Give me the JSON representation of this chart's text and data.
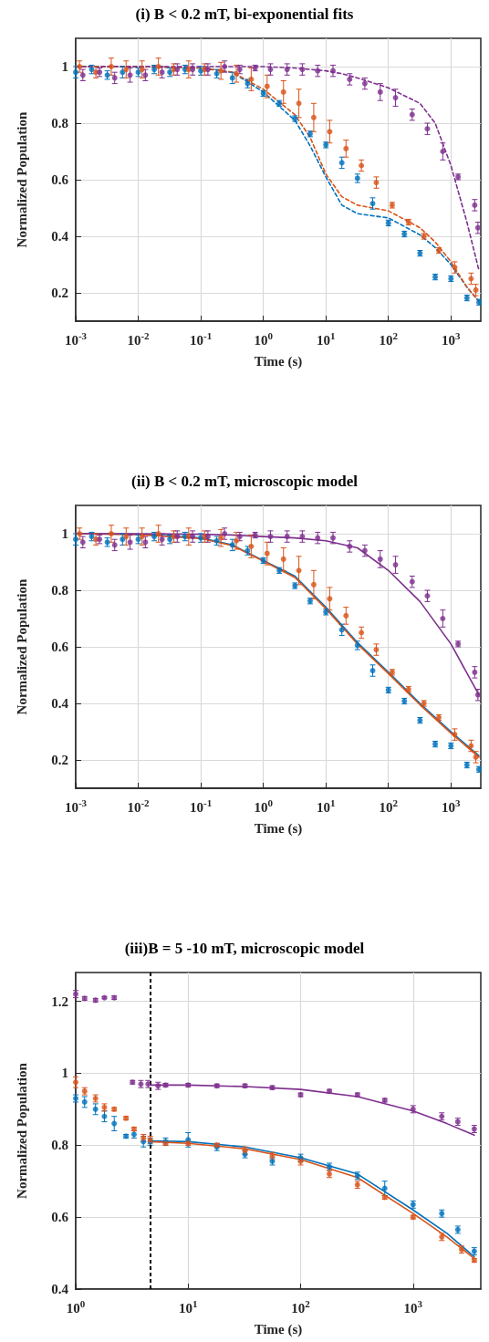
{
  "chart_data": [
    {
      "type": "scatter",
      "title": "(i) B < 0.2 mT, bi-exponential fits",
      "xlabel": "Time (s)",
      "ylabel": "Normalized Population",
      "log": "x",
      "grid": true,
      "marker": "circle",
      "xlim": [
        0.001,
        3000
      ],
      "ylim": [
        0.1,
        1.1
      ],
      "xticks": [
        {
          "value": 0.001,
          "label": "10$^{-3}$"
        },
        {
          "value": 0.01,
          "label": "10$^{-2}$"
        },
        {
          "value": 0.1,
          "label": "10$^{-1}$"
        },
        {
          "value": 1,
          "label": "10$^{0}$"
        },
        {
          "value": 10,
          "label": "10$^{1}$"
        },
        {
          "value": 100,
          "label": "10$^{2}$"
        },
        {
          "value": 1000,
          "label": "10$^{3}$"
        }
      ],
      "yticks": [
        {
          "value": 0.2,
          "label": "0.2"
        },
        {
          "value": 0.4,
          "label": "0.4"
        },
        {
          "value": 0.6,
          "label": "0.6"
        },
        {
          "value": 0.8,
          "label": "0.8"
        },
        {
          "value": 1,
          "label": "1"
        }
      ],
      "series": [
        {
          "color": "#0072bd",
          "x": [
            0.001,
            0.0018,
            0.0032,
            0.0056,
            0.01,
            0.018,
            0.032,
            0.056,
            0.1,
            0.18,
            0.32,
            0.56,
            1,
            1.8,
            3.2,
            5.6,
            10,
            18,
            32,
            56,
            100,
            180,
            320,
            560,
            1000,
            1800,
            2800
          ],
          "values": [
            0.98,
            0.99,
            0.97,
            0.98,
            0.98,
            0.99,
            0.98,
            0.99,
            0.985,
            0.975,
            0.96,
            0.94,
            0.905,
            0.87,
            0.816,
            0.762,
            0.723,
            0.66,
            0.605,
            0.516,
            0.447,
            0.408,
            0.34,
            0.256,
            0.25,
            0.182,
            0.167
          ],
          "errors": [
            0.02,
            0.015,
            0.015,
            0.02,
            0.015,
            0.015,
            0.015,
            0.015,
            0.015,
            0.015,
            0.02,
            0.015,
            0.01,
            0.01,
            0.01,
            0.01,
            0.01,
            0.02,
            0.015,
            0.02,
            0.01,
            0.01,
            0.01,
            0.01,
            0.01,
            0.01,
            0.01
          ]
        },
        {
          "color": "#d95319",
          "x": [
            0.00115,
            0.0021,
            0.0037,
            0.0064,
            0.0115,
            0.021,
            0.037,
            0.064,
            0.115,
            0.21,
            0.37,
            0.64,
            1.15,
            2.1,
            3.7,
            6.4,
            11.5,
            21,
            37,
            64,
            115,
            210,
            370,
            640,
            1150,
            2100,
            2500
          ],
          "values": [
            1.0,
            0.98,
            1.0,
            0.99,
            0.99,
            1.0,
            0.99,
            0.99,
            0.99,
            0.985,
            0.975,
            0.955,
            0.93,
            0.91,
            0.87,
            0.82,
            0.77,
            0.71,
            0.65,
            0.59,
            0.51,
            0.45,
            0.4,
            0.35,
            0.29,
            0.25,
            0.21
          ],
          "errors": [
            0.02,
            0.02,
            0.03,
            0.03,
            0.03,
            0.03,
            0.02,
            0.03,
            0.02,
            0.03,
            0.03,
            0.04,
            0.04,
            0.04,
            0.05,
            0.05,
            0.04,
            0.03,
            0.02,
            0.02,
            0.01,
            0.01,
            0.01,
            0.01,
            0.02,
            0.02,
            0.02
          ]
        },
        {
          "color": "#7e2f8e",
          "x": [
            0.0013,
            0.0024,
            0.0042,
            0.0074,
            0.013,
            0.024,
            0.042,
            0.074,
            0.13,
            0.24,
            0.42,
            0.74,
            1.3,
            2.4,
            4.2,
            7.4,
            13,
            24,
            42,
            74,
            130,
            240,
            420,
            740,
            1300,
            2400,
            2700
          ],
          "values": [
            0.97,
            0.98,
            0.96,
            0.97,
            0.97,
            0.98,
            0.99,
            0.99,
            0.99,
            1.0,
            0.99,
            0.995,
            0.99,
            0.99,
            0.99,
            0.985,
            0.985,
            0.955,
            0.94,
            0.91,
            0.89,
            0.83,
            0.78,
            0.7,
            0.61,
            0.51,
            0.43
          ],
          "errors": [
            0.02,
            0.015,
            0.02,
            0.025,
            0.02,
            0.02,
            0.02,
            0.02,
            0.02,
            0.02,
            0.015,
            0.01,
            0.02,
            0.02,
            0.02,
            0.02,
            0.02,
            0.02,
            0.02,
            0.03,
            0.03,
            0.02,
            0.02,
            0.03,
            0.01,
            0.02,
            0.02
          ]
        },
        {
          "type": "line",
          "line_style": "dashed",
          "marker": "none",
          "color": "#0072bd",
          "x": [
            0.001,
            0.01,
            0.1,
            0.32,
            1,
            3.2,
            5.6,
            10,
            18,
            32,
            100,
            320,
            560,
            1000,
            1800,
            2800
          ],
          "values": [
            1,
            1,
            0.995,
            0.98,
            0.91,
            0.81,
            0.72,
            0.61,
            0.51,
            0.48,
            0.465,
            0.405,
            0.36,
            0.3,
            0.22,
            0.17
          ]
        },
        {
          "type": "line",
          "line_style": "dashed",
          "marker": "none",
          "color": "#d95319",
          "x": [
            0.001,
            0.01,
            0.1,
            0.32,
            1,
            3.2,
            5.6,
            10,
            18,
            32,
            100,
            320,
            560,
            1000,
            1800,
            2800
          ],
          "values": [
            1,
            1,
            0.995,
            0.98,
            0.92,
            0.83,
            0.75,
            0.62,
            0.54,
            0.51,
            0.49,
            0.43,
            0.38,
            0.31,
            0.22,
            0.17
          ]
        },
        {
          "type": "line",
          "line_style": "dashed",
          "marker": "none",
          "color": "#7e2f8e",
          "x": [
            0.001,
            0.01,
            0.1,
            0.32,
            1,
            3.2,
            5.6,
            10,
            18,
            32,
            100,
            320,
            560,
            1000,
            1800,
            2800
          ],
          "values": [
            1,
            1,
            1,
            1,
            1,
            0.995,
            0.99,
            0.985,
            0.975,
            0.96,
            0.925,
            0.87,
            0.8,
            0.65,
            0.45,
            0.28
          ]
        }
      ]
    },
    {
      "type": "scatter",
      "title": "(ii) B < 0.2 mT, microscopic model",
      "xlabel": "Time (s)",
      "ylabel": "Normalized Population",
      "log": "x",
      "grid": true,
      "marker": "circle",
      "xlim": [
        0.001,
        3000
      ],
      "ylim": [
        0.1,
        1.1
      ],
      "xticks": [
        {
          "value": 0.001,
          "label": "10$^{-3}$"
        },
        {
          "value": 0.01,
          "label": "10$^{-2}$"
        },
        {
          "value": 0.1,
          "label": "10$^{-1}$"
        },
        {
          "value": 1,
          "label": "10$^{0}$"
        },
        {
          "value": 10,
          "label": "10$^{1}$"
        },
        {
          "value": 100,
          "label": "10$^{2}$"
        },
        {
          "value": 1000,
          "label": "10$^{3}$"
        }
      ],
      "yticks": [
        {
          "value": 0.2,
          "label": "0.2"
        },
        {
          "value": 0.4,
          "label": "0.4"
        },
        {
          "value": 0.6,
          "label": "0.6"
        },
        {
          "value": 0.8,
          "label": "0.8"
        },
        {
          "value": 1,
          "label": "1"
        }
      ],
      "series": [
        {
          "color": "#0072bd",
          "x": [
            0.001,
            0.0018,
            0.0032,
            0.0056,
            0.01,
            0.018,
            0.032,
            0.056,
            0.1,
            0.18,
            0.32,
            0.56,
            1,
            1.8,
            3.2,
            5.6,
            10,
            18,
            32,
            56,
            100,
            180,
            320,
            560,
            1000,
            1800,
            2800
          ],
          "values": [
            0.98,
            0.99,
            0.97,
            0.98,
            0.98,
            0.99,
            0.98,
            0.99,
            0.985,
            0.975,
            0.96,
            0.94,
            0.905,
            0.87,
            0.816,
            0.762,
            0.723,
            0.66,
            0.605,
            0.516,
            0.447,
            0.408,
            0.34,
            0.256,
            0.25,
            0.182,
            0.167
          ],
          "errors": [
            0.02,
            0.015,
            0.015,
            0.02,
            0.015,
            0.015,
            0.015,
            0.015,
            0.015,
            0.015,
            0.02,
            0.015,
            0.01,
            0.01,
            0.01,
            0.01,
            0.01,
            0.02,
            0.015,
            0.02,
            0.01,
            0.01,
            0.01,
            0.01,
            0.01,
            0.01,
            0.01
          ]
        },
        {
          "color": "#d95319",
          "x": [
            0.00115,
            0.0021,
            0.0037,
            0.0064,
            0.0115,
            0.021,
            0.037,
            0.064,
            0.115,
            0.21,
            0.37,
            0.64,
            1.15,
            2.1,
            3.7,
            6.4,
            11.5,
            21,
            37,
            64,
            115,
            210,
            370,
            640,
            1150,
            2100,
            2500
          ],
          "values": [
            1.0,
            0.98,
            1.0,
            0.99,
            0.99,
            1.0,
            0.99,
            0.99,
            0.99,
            0.985,
            0.975,
            0.955,
            0.93,
            0.91,
            0.87,
            0.82,
            0.77,
            0.71,
            0.65,
            0.59,
            0.51,
            0.45,
            0.4,
            0.35,
            0.29,
            0.25,
            0.21
          ],
          "errors": [
            0.02,
            0.02,
            0.03,
            0.03,
            0.03,
            0.03,
            0.02,
            0.03,
            0.02,
            0.03,
            0.03,
            0.04,
            0.04,
            0.04,
            0.05,
            0.05,
            0.04,
            0.03,
            0.02,
            0.02,
            0.01,
            0.01,
            0.01,
            0.01,
            0.02,
            0.02,
            0.02
          ]
        },
        {
          "color": "#7e2f8e",
          "x": [
            0.0013,
            0.0024,
            0.0042,
            0.0074,
            0.013,
            0.024,
            0.042,
            0.074,
            0.13,
            0.24,
            0.42,
            0.74,
            1.3,
            2.4,
            4.2,
            7.4,
            13,
            24,
            42,
            74,
            130,
            240,
            420,
            740,
            1300,
            2400,
            2700
          ],
          "values": [
            0.97,
            0.98,
            0.96,
            0.97,
            0.97,
            0.98,
            0.99,
            0.99,
            0.99,
            1.0,
            0.99,
            0.995,
            0.99,
            0.99,
            0.99,
            0.985,
            0.985,
            0.955,
            0.94,
            0.91,
            0.89,
            0.83,
            0.78,
            0.7,
            0.61,
            0.51,
            0.43
          ],
          "errors": [
            0.02,
            0.015,
            0.02,
            0.025,
            0.02,
            0.02,
            0.02,
            0.02,
            0.02,
            0.02,
            0.015,
            0.01,
            0.02,
            0.02,
            0.02,
            0.02,
            0.02,
            0.02,
            0.02,
            0.03,
            0.03,
            0.02,
            0.02,
            0.03,
            0.01,
            0.02,
            0.02
          ]
        },
        {
          "type": "line",
          "line_style": "solid",
          "marker": "none",
          "color": "#0072bd",
          "x": [
            0.001,
            0.01,
            0.1,
            0.32,
            1,
            3.2,
            10,
            32,
            100,
            320,
            1000,
            2800
          ],
          "values": [
            1,
            0.998,
            0.985,
            0.96,
            0.905,
            0.85,
            0.74,
            0.615,
            0.51,
            0.4,
            0.3,
            0.215
          ]
        },
        {
          "type": "line",
          "line_style": "solid",
          "marker": "none",
          "color": "#d95319",
          "x": [
            0.001,
            0.01,
            0.1,
            0.32,
            1,
            3.2,
            10,
            32,
            100,
            320,
            1000,
            2800
          ],
          "values": [
            1,
            0.997,
            0.983,
            0.958,
            0.903,
            0.845,
            0.735,
            0.61,
            0.505,
            0.395,
            0.295,
            0.21
          ]
        },
        {
          "type": "line",
          "line_style": "solid",
          "marker": "none",
          "color": "#7e2f8e",
          "x": [
            0.001,
            0.01,
            0.1,
            0.32,
            1,
            3.2,
            10,
            32,
            100,
            320,
            1000,
            2800
          ],
          "values": [
            1,
            1,
            0.998,
            0.995,
            0.99,
            0.985,
            0.975,
            0.95,
            0.87,
            0.76,
            0.61,
            0.43
          ]
        }
      ]
    },
    {
      "type": "scatter",
      "title": "(iii)B = 5 -10 mT, microscopic model",
      "xlabel": "Time (s)",
      "ylabel": "Normalized Population",
      "log": "x",
      "grid": true,
      "marker": "circle",
      "xlim": [
        1,
        4000
      ],
      "ylim": [
        0.4,
        1.28
      ],
      "xticks": [
        {
          "value": 1,
          "label": "10$^{0}$"
        },
        {
          "value": 10,
          "label": "10$^{1}$"
        },
        {
          "value": 100,
          "label": "10$^{2}$"
        },
        {
          "value": 1000,
          "label": "10$^{3}$"
        }
      ],
      "yticks": [
        {
          "value": 0.4,
          "label": "0.4"
        },
        {
          "value": 0.6,
          "label": "0.6"
        },
        {
          "value": 0.8,
          "label": "0.8"
        },
        {
          "value": 1,
          "label": "1"
        },
        {
          "value": 1.2,
          "label": "1.2"
        }
      ],
      "ref_lines": [
        {
          "axis": "x",
          "value": 4.6,
          "color": "#000000",
          "line_style": "dashed"
        }
      ],
      "series": [
        {
          "color": "#0072bd",
          "x": [
            1,
            1.2,
            1.5,
            1.8,
            2.2,
            2.8,
            3.3,
            4,
            4.6,
            6.3,
            10,
            18,
            32,
            56,
            100,
            180,
            320,
            560,
            1000,
            1800,
            2500,
            3500
          ],
          "values": [
            0.93,
            0.92,
            0.9,
            0.88,
            0.86,
            0.825,
            0.83,
            0.81,
            0.81,
            0.81,
            0.815,
            0.795,
            0.775,
            0.755,
            0.765,
            0.74,
            0.715,
            0.68,
            0.635,
            0.61,
            0.565,
            0.505
          ],
          "errors": [
            0.01,
            0.015,
            0.015,
            0.015,
            0.02,
            0.005,
            0.01,
            0.015,
            0.01,
            0.01,
            0.02,
            0.01,
            0.01,
            0.01,
            0.01,
            0.01,
            0.01,
            0.02,
            0.01,
            0.01,
            0.01,
            0.01
          ]
        },
        {
          "color": "#d95319",
          "x": [
            1,
            1.2,
            1.5,
            1.8,
            2.2,
            2.8,
            3.3,
            4,
            4.6,
            6.3,
            10,
            18,
            32,
            56,
            100,
            180,
            320,
            560,
            1000,
            1800,
            2700,
            3500
          ],
          "values": [
            0.975,
            0.95,
            0.93,
            0.905,
            0.9,
            0.875,
            0.845,
            0.82,
            0.815,
            0.805,
            0.805,
            0.8,
            0.785,
            0.77,
            0.755,
            0.72,
            0.69,
            0.655,
            0.6,
            0.545,
            0.51,
            0.48
          ],
          "errors": [
            0.015,
            0.01,
            0.01,
            0.01,
            0.005,
            0.005,
            0.005,
            0.01,
            0.01,
            0.005,
            0.005,
            0.005,
            0.01,
            0.01,
            0.01,
            0.01,
            0.01,
            0.005,
            0.005,
            0.01,
            0.01,
            0.005
          ]
        },
        {
          "color": "#7e2f8e",
          "x": [
            1,
            1.2,
            1.5,
            1.8,
            2.2,
            3.2,
            3.8,
            4.4,
            5.4,
            6.3,
            10,
            18,
            32,
            56,
            100,
            180,
            320,
            560,
            1000,
            1800,
            2500,
            3500
          ],
          "values": [
            1.22,
            1.208,
            1.203,
            1.21,
            1.21,
            0.975,
            0.97,
            0.97,
            0.965,
            0.967,
            0.967,
            0.965,
            0.965,
            0.96,
            0.94,
            0.95,
            0.94,
            0.925,
            0.9,
            0.88,
            0.865,
            0.845
          ],
          "errors": [
            0.01,
            0.005,
            0.005,
            0.003,
            0.005,
            0.005,
            0.01,
            0.01,
            0.01,
            0.005,
            0.005,
            0.005,
            0.005,
            0.005,
            0.005,
            0.005,
            0.005,
            0.005,
            0.01,
            0.01,
            0.01,
            0.01
          ]
        },
        {
          "type": "line",
          "line_style": "solid",
          "marker": "none",
          "color": "#0072bd",
          "x": [
            4.6,
            10,
            32,
            100,
            320,
            1000,
            2000,
            3500
          ],
          "values": [
            0.812,
            0.81,
            0.795,
            0.765,
            0.72,
            0.62,
            0.555,
            0.49
          ]
        },
        {
          "type": "line",
          "line_style": "solid",
          "marker": "none",
          "color": "#d95319",
          "x": [
            4.6,
            10,
            32,
            100,
            320,
            1000,
            2000,
            3500
          ],
          "values": [
            0.81,
            0.805,
            0.79,
            0.76,
            0.71,
            0.61,
            0.545,
            0.485
          ]
        },
        {
          "type": "line",
          "line_style": "solid",
          "marker": "none",
          "color": "#7e2f8e",
          "x": [
            4.6,
            10,
            32,
            100,
            320,
            1000,
            2000,
            3500
          ],
          "values": [
            0.967,
            0.967,
            0.963,
            0.955,
            0.935,
            0.895,
            0.86,
            0.828
          ]
        }
      ]
    }
  ]
}
